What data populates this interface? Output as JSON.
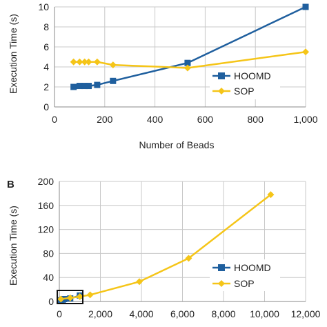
{
  "chart_data": [
    {
      "type": "line",
      "panel_label": "",
      "xlabel": "Number of Beads",
      "ylabel": "Execution Time (s)",
      "xlim": [
        0,
        1000
      ],
      "ylim": [
        0,
        10
      ],
      "xticks": [
        0,
        200,
        400,
        600,
        800,
        1000
      ],
      "xtick_labels": [
        "0",
        "200",
        "400",
        "600",
        "800",
        "1,000"
      ],
      "yticks": [
        0,
        2,
        4,
        6,
        8,
        10
      ],
      "ytick_labels": [
        "0",
        "2",
        "4",
        "6",
        "8",
        "10"
      ],
      "grid": true,
      "legend_position": "right",
      "series": [
        {
          "name": "HOOMD",
          "color": "#1f5f9e",
          "marker": "square",
          "x": [
            76,
            100,
            120,
            136,
            170,
            233,
            530,
            1000
          ],
          "y": [
            2.0,
            2.1,
            2.1,
            2.1,
            2.2,
            2.6,
            4.4,
            10.0
          ]
        },
        {
          "name": "SOP",
          "color": "#f5c518",
          "marker": "diamond",
          "x": [
            76,
            100,
            120,
            136,
            170,
            233,
            530,
            1000
          ],
          "y": [
            4.5,
            4.5,
            4.5,
            4.5,
            4.5,
            4.2,
            3.9,
            5.5
          ]
        }
      ]
    },
    {
      "type": "line",
      "panel_label": "B",
      "xlabel": "",
      "ylabel": "Execution Time (s)",
      "xlim": [
        0,
        12000
      ],
      "ylim": [
        0,
        200
      ],
      "xticks": [
        0,
        2000,
        4000,
        6000,
        8000,
        10000,
        12000
      ],
      "xtick_labels": [
        "0",
        "2,000",
        "4,000",
        "6,000",
        "8,000",
        "10,000",
        "12,000"
      ],
      "yticks": [
        0,
        40,
        80,
        120,
        160,
        200
      ],
      "ytick_labels": [
        "0",
        "40",
        "80",
        "120",
        "160",
        "200"
      ],
      "grid": true,
      "legend_position": "right",
      "series": [
        {
          "name": "HOOMD",
          "color": "#1f5f9e",
          "marker": "square",
          "x": [
            76,
            170,
            233,
            530,
            1000
          ],
          "y": [
            2,
            3,
            4,
            5,
            10
          ]
        },
        {
          "name": "SOP",
          "color": "#f5c518",
          "marker": "diamond",
          "x": [
            76,
            530,
            1000,
            1500,
            3900,
            6300,
            10300
          ],
          "y": [
            4,
            6,
            8,
            11,
            33,
            72,
            178
          ]
        }
      ]
    }
  ]
}
